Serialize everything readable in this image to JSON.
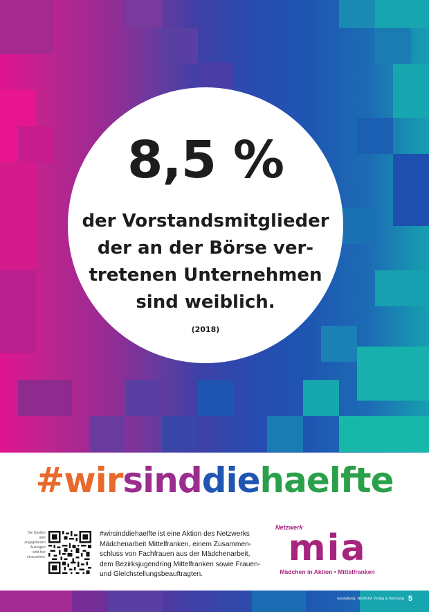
{
  "poster": {
    "stat": "8,5 %",
    "statement_lines": [
      "der Vorstandsmitglieder",
      "der an der Börse ver-",
      "tretenen Unternehmen",
      "sind weiblich."
    ],
    "year": "(2018)"
  },
  "hashtag": {
    "parts": [
      {
        "text": "#wir",
        "color": "#e8692c"
      },
      {
        "text": "sind",
        "color": "#9b2d8e"
      },
      {
        "text": "die",
        "color": "#1e56b2"
      },
      {
        "text": "haelfte",
        "color": "#2aa04a"
      }
    ]
  },
  "sources_lines": [
    "Die Quellen",
    "aller",
    "angegebenen",
    "Aussagen",
    "sind hier",
    "einzusehen."
  ],
  "qr_icon": "qr-code-icon",
  "info_lines": [
    "#wirsinddiehaelfte ist eine Aktion des Netzwerks",
    "Mädchenarbeit Mittelfranken, einem Zusammen-",
    "schluss von Fachfrauen aus der Mädchenarbeit,",
    "dem Bezirksjugendring Mittelfranken sowie Frauen-",
    "und Gleichstellungsbeauftragten."
  ],
  "logo": {
    "top_text": "Netzwerk",
    "mark": "mia",
    "subtitle": "Mädchen in Aktion • Mittelfranken",
    "color": "#a6267e"
  },
  "footer": {
    "credit": "Gestaltung: NEWUM Verlag & Werbung",
    "page_number": "5"
  }
}
